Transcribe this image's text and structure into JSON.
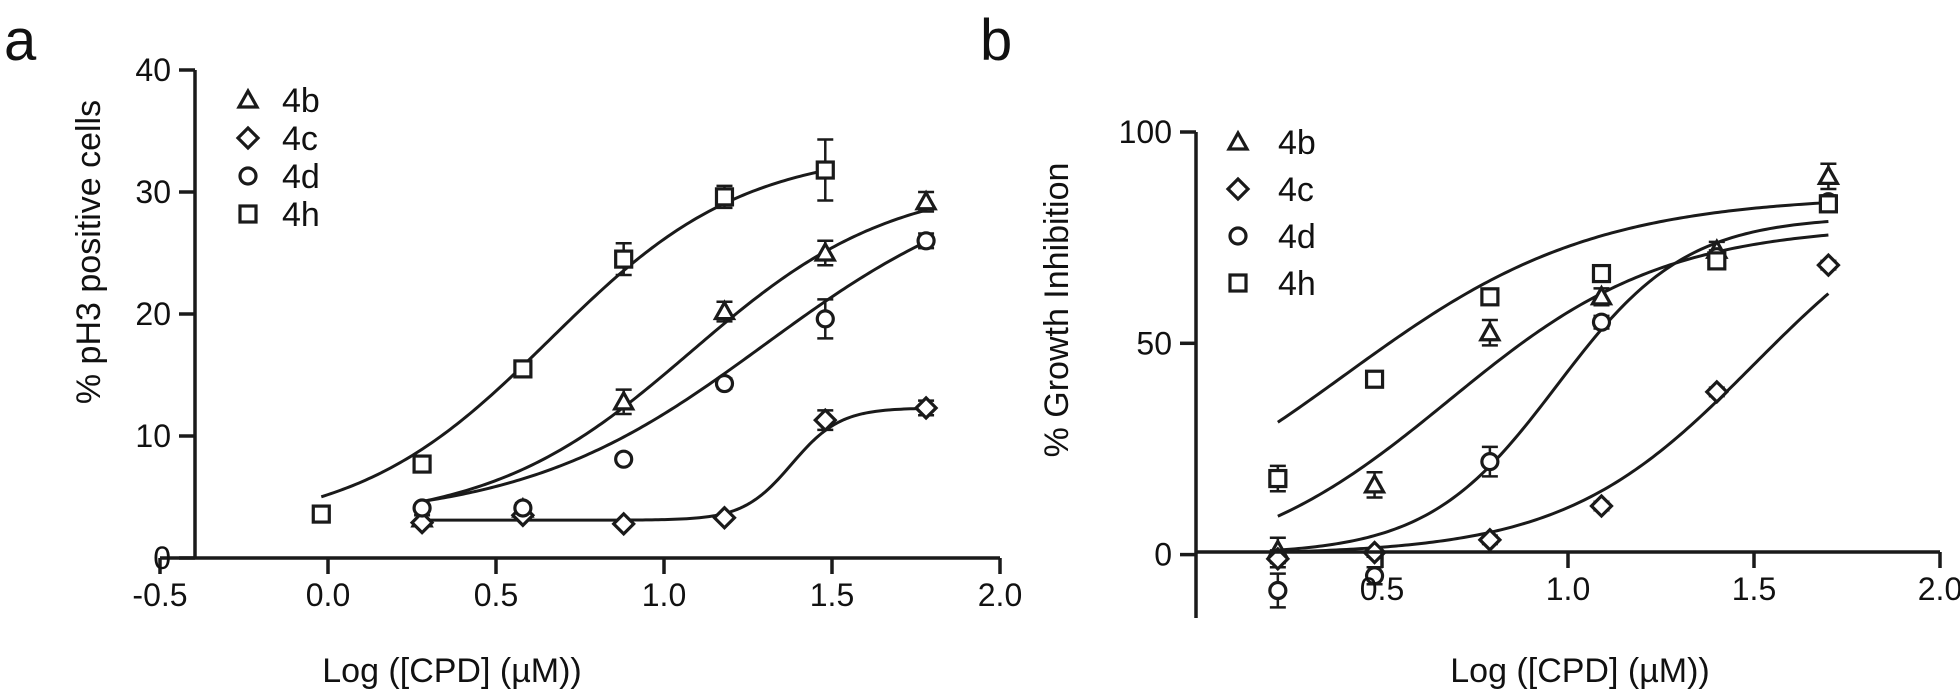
{
  "colors": {
    "ink": "#1a1a1a",
    "background": "#ffffff"
  },
  "chart_data": [
    {
      "panel": "a",
      "type": "scatter",
      "xlabel": "Log ([CPD] (µM))",
      "ylabel": "% pH3 positive cells",
      "xlim": [
        -0.5,
        2.0
      ],
      "ylim": [
        0,
        40
      ],
      "xticks": [
        "-0.5",
        "0.0",
        "0.5",
        "1.0",
        "1.5",
        "2.0"
      ],
      "yticks": [
        "0",
        "10",
        "20",
        "30",
        "40"
      ],
      "grid": false,
      "legend_position": "top-left",
      "fitted_curves": true,
      "series": [
        {
          "name": "4b",
          "marker": "triangle",
          "points": [
            [
              0.28,
              3.2,
              0.3
            ],
            [
              0.58,
              4.0,
              0.5
            ],
            [
              0.88,
              12.8,
              1.0
            ],
            [
              1.18,
              20.2,
              0.8
            ],
            [
              1.48,
              25.0,
              1.0
            ],
            [
              1.78,
              29.2,
              0.8
            ]
          ],
          "fit": {
            "bottom": 2.8,
            "top": 31.0,
            "logEC50": 1.08,
            "hill": 1.45
          }
        },
        {
          "name": "4c",
          "marker": "diamond",
          "points": [
            [
              0.28,
              2.9,
              0.2
            ],
            [
              0.58,
              3.5,
              0.3
            ],
            [
              0.88,
              2.8,
              0.2
            ],
            [
              1.18,
              3.3,
              0.2
            ],
            [
              1.48,
              11.3,
              0.8
            ],
            [
              1.78,
              12.3,
              0.6
            ]
          ],
          "fit": {
            "bottom": 3.1,
            "top": 12.3,
            "logEC50": 1.38,
            "hill": 6.0
          }
        },
        {
          "name": "4d",
          "marker": "circle",
          "points": [
            [
              0.28,
              4.1,
              0.3
            ],
            [
              0.58,
              4.1,
              0.3
            ],
            [
              0.88,
              8.1,
              0.3
            ],
            [
              1.18,
              14.3,
              0.4
            ],
            [
              1.48,
              19.6,
              1.6
            ],
            [
              1.78,
              26.0,
              0.6
            ]
          ],
          "fit": {
            "bottom": 3.0,
            "top": 32.0,
            "logEC50": 1.3,
            "hill": 1.2
          }
        },
        {
          "name": "4h",
          "marker": "square",
          "points": [
            [
              -0.02,
              3.6,
              0.2
            ],
            [
              0.28,
              7.7,
              0.5
            ],
            [
              0.58,
              15.5,
              0.4
            ],
            [
              0.88,
              24.5,
              1.3
            ],
            [
              1.18,
              29.6,
              0.9
            ],
            [
              1.48,
              31.8,
              2.5
            ]
          ],
          "fit": {
            "bottom": 2.3,
            "top": 33.5,
            "logEC50": 0.66,
            "hill": 1.5
          }
        }
      ]
    },
    {
      "panel": "b",
      "type": "scatter",
      "xlabel": "Log ([CPD] (µM))",
      "ylabel": "% Growth Inhibition",
      "xlim": [
        0,
        2.0
      ],
      "ylim": [
        -15,
        100
      ],
      "xticks": [
        "0.5",
        "1.0",
        "1.5",
        "2.0"
      ],
      "yticks": [
        "0",
        "50",
        "100"
      ],
      "grid": false,
      "legend_position": "top-left",
      "fitted_curves": true,
      "series": [
        {
          "name": "4b",
          "marker": "triangle",
          "points": [
            [
              0.22,
              1.0,
              3.0
            ],
            [
              0.48,
              16.5,
              3.0
            ],
            [
              0.79,
              52.5,
              3.0
            ],
            [
              1.09,
              61.0,
              2.0
            ],
            [
              1.4,
              72.0,
              2.0
            ],
            [
              1.7,
              89.5,
              3.0
            ]
          ],
          "fit": {
            "bottom": -5,
            "top": 78,
            "logEC50": 0.68,
            "hill": 1.5
          }
        },
        {
          "name": "4c",
          "marker": "diamond",
          "points": [
            [
              0.22,
              -1.0,
              2.0
            ],
            [
              0.48,
              0.5,
              1.0
            ],
            [
              0.79,
              3.5,
              1.0
            ],
            [
              1.09,
              11.5,
              1.0
            ],
            [
              1.4,
              38.5,
              1.0
            ],
            [
              1.7,
              68.5,
              1.0
            ]
          ],
          "fit": {
            "bottom": 0,
            "top": 90,
            "logEC50": 1.5,
            "hill": 1.7
          }
        },
        {
          "name": "4d",
          "marker": "circle",
          "points": [
            [
              0.22,
              -8.5,
              4.0
            ],
            [
              0.48,
              -5.0,
              2.0
            ],
            [
              0.79,
              22.0,
              3.5
            ],
            [
              1.09,
              55.0,
              1.5
            ],
            [
              1.4,
              70.5,
              1.5
            ],
            [
              1.7,
              83.5,
              1.5
            ]
          ],
          "fit": {
            "bottom": 0,
            "top": 80,
            "logEC50": 0.97,
            "hill": 2.5
          }
        },
        {
          "name": "4h",
          "marker": "square",
          "points": [
            [
              0.22,
              18.0,
              3.0
            ],
            [
              0.48,
              41.5,
              1.5
            ],
            [
              0.79,
              61.0,
              1.5
            ],
            [
              1.09,
              66.5,
              1.5
            ],
            [
              1.4,
              69.5,
              1.5
            ],
            [
              1.7,
              83.0,
              1.5
            ]
          ],
          "fit": {
            "bottom": 0,
            "top": 85,
            "logEC50": 0.4,
            "hill": 1.3
          }
        }
      ]
    }
  ]
}
